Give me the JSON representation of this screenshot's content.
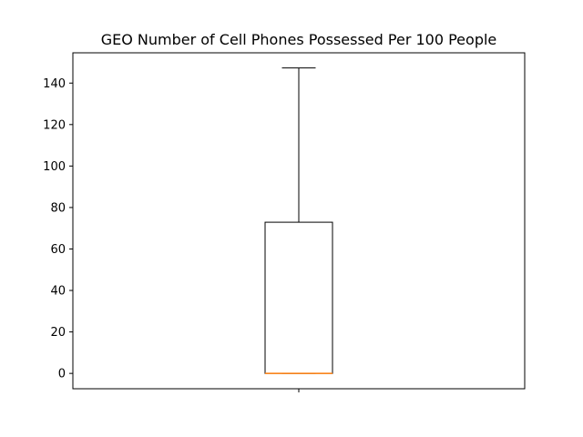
{
  "chart_data": {
    "type": "box",
    "title": "GEO Number of Cell Phones Possessed Per 100 People",
    "xlabel": "",
    "ylabel": "",
    "ylim": [
      -7.4,
      154.6
    ],
    "yticks": [
      0,
      20,
      40,
      60,
      80,
      100,
      120,
      140
    ],
    "xticks": [
      ""
    ],
    "grid": false,
    "box": {
      "whisker_low": 0,
      "q1": 0,
      "median": 0,
      "q3": 72.9,
      "whisker_high": 147.3
    },
    "colors": {
      "box": "#000000",
      "median": "#ff7f0e"
    }
  }
}
